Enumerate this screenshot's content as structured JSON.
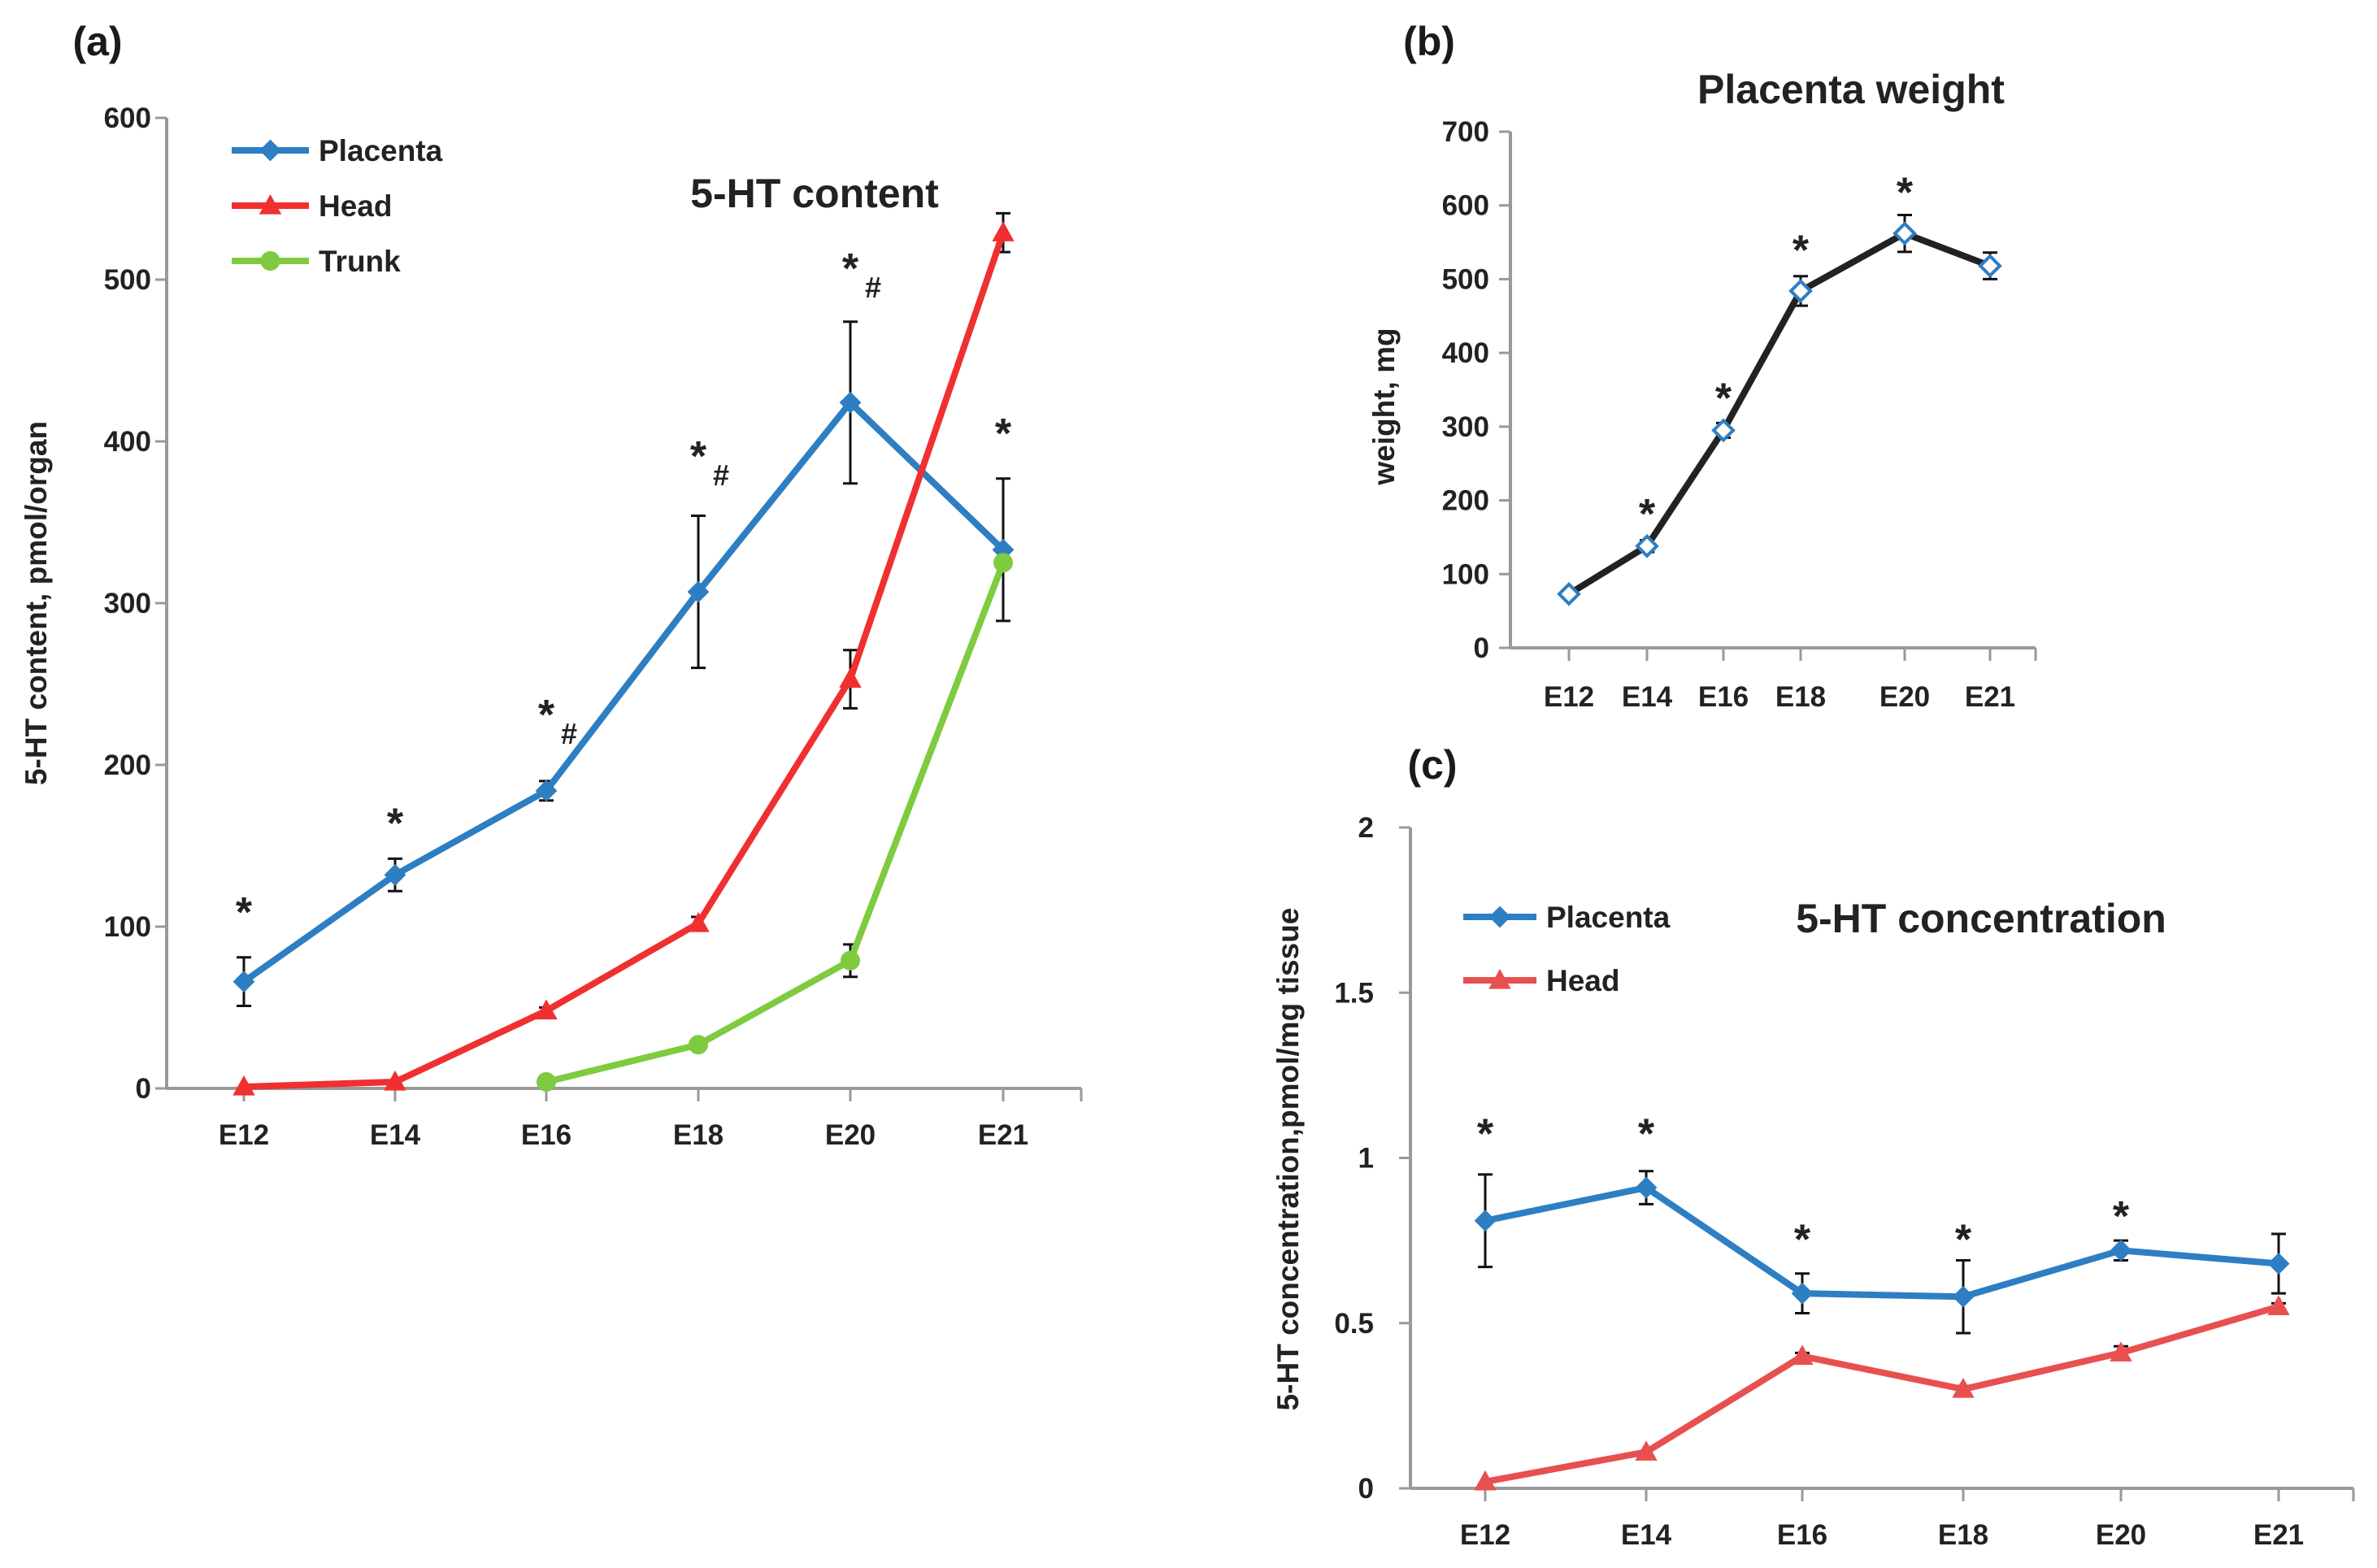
{
  "chart_data": [
    {
      "id": "a",
      "panel_label": "(a)",
      "type": "line",
      "title": "5-HT content",
      "xlabel": "",
      "ylabel": "5-HT content, pmol/organ",
      "categories": [
        "E12",
        "E14",
        "E16",
        "E18",
        "E20",
        "E21"
      ],
      "ylim": [
        0,
        600
      ],
      "yticks": [
        0,
        100,
        200,
        300,
        400,
        500,
        600
      ],
      "ytick_labels": [
        "0",
        "100",
        "200",
        "300",
        "400",
        "500",
        "600"
      ],
      "legend_position": "top-left",
      "series": [
        {
          "name": "Placenta",
          "color": "#2E7EC3",
          "marker": "diamond",
          "values": [
            66,
            132,
            184,
            307,
            424,
            333
          ],
          "errors": [
            15,
            10,
            6,
            47,
            50,
            44
          ]
        },
        {
          "name": "Head",
          "color": "#F03030",
          "marker": "triangle",
          "values": [
            1,
            4,
            48,
            102,
            253,
            529
          ],
          "errors": [
            0,
            0,
            2,
            4,
            18,
            12
          ]
        },
        {
          "name": "Trunk",
          "color": "#7ECB3F",
          "marker": "circle",
          "values": [
            null,
            null,
            4,
            27,
            79,
            325
          ],
          "errors": [
            0,
            0,
            0,
            3,
            10,
            0
          ]
        }
      ],
      "annotations": [
        {
          "category_index": 0,
          "value": 100,
          "star": "*",
          "hash": ""
        },
        {
          "category_index": 1,
          "value": 155,
          "star": "*",
          "hash": ""
        },
        {
          "category_index": 2,
          "value": 222,
          "star": "*",
          "hash": "#"
        },
        {
          "category_index": 3,
          "value": 382,
          "star": "*",
          "hash": "#"
        },
        {
          "category_index": 4,
          "value": 498,
          "star": "*",
          "hash": "#"
        },
        {
          "category_index": 5,
          "value": 396,
          "star": "*",
          "hash": ""
        }
      ]
    },
    {
      "id": "b",
      "panel_label": "(b)",
      "type": "line",
      "title": "Placenta weight",
      "xlabel": "",
      "ylabel": "weight, mg",
      "categories": [
        "E12",
        "E14",
        "E16",
        "E18",
        "E20",
        "E21"
      ],
      "ylim": [
        0,
        700
      ],
      "yticks": [
        0,
        100,
        200,
        300,
        400,
        500,
        600,
        700
      ],
      "ytick_labels": [
        "0",
        "100",
        "200",
        "300",
        "400",
        "500",
        "600",
        "700"
      ],
      "series": [
        {
          "name": "Placenta weight",
          "color": "#222222",
          "marker": "diamond-open",
          "marker_color": "#2E7EC3",
          "values": [
            73,
            138,
            295,
            484,
            562,
            518
          ],
          "errors": [
            5,
            8,
            10,
            20,
            25,
            18
          ]
        }
      ],
      "annotations": [
        {
          "category_index": 1,
          "value": 162,
          "star": "*",
          "hash": ""
        },
        {
          "category_index": 2,
          "value": 319,
          "star": "*",
          "hash": ""
        },
        {
          "category_index": 3,
          "value": 520,
          "star": "*",
          "hash": ""
        },
        {
          "category_index": 4,
          "value": 598,
          "star": "*",
          "hash": ""
        }
      ]
    },
    {
      "id": "c",
      "panel_label": "(c)",
      "type": "line",
      "title": "5-HT concentration",
      "xlabel": "",
      "ylabel": "5-HT concentration,pmol/mg tissue",
      "categories": [
        "E12",
        "E14",
        "E16",
        "E18",
        "E20",
        "E21"
      ],
      "ylim": [
        0,
        2
      ],
      "yticks": [
        0,
        0.5,
        1,
        1.5,
        2
      ],
      "ytick_labels": [
        "0",
        "0.5",
        "1",
        "1.5",
        "2"
      ],
      "legend_position": "top-left",
      "series": [
        {
          "name": "Placenta",
          "color": "#2E7EC3",
          "marker": "diamond",
          "values": [
            0.81,
            0.91,
            0.59,
            0.58,
            0.72,
            0.68
          ],
          "errors": [
            0.14,
            0.05,
            0.06,
            0.11,
            0.03,
            0.09
          ]
        },
        {
          "name": "Head",
          "color": "#E85050",
          "marker": "triangle",
          "values": [
            0.02,
            0.11,
            0.4,
            0.3,
            0.41,
            0.55
          ],
          "errors": [
            0,
            0,
            0.01,
            0.01,
            0.02,
            0.01
          ]
        }
      ],
      "annotations": [
        {
          "category_index": 0,
          "value": 1.03,
          "star": "*",
          "hash": ""
        },
        {
          "category_index": 1,
          "value": 1.03,
          "star": "*",
          "hash": ""
        },
        {
          "category_index": 2,
          "value": 0.71,
          "star": "*",
          "hash": ""
        },
        {
          "category_index": 3,
          "value": 0.71,
          "star": "*",
          "hash": ""
        },
        {
          "category_index": 4,
          "value": 0.78,
          "star": "*",
          "hash": ""
        }
      ]
    }
  ]
}
